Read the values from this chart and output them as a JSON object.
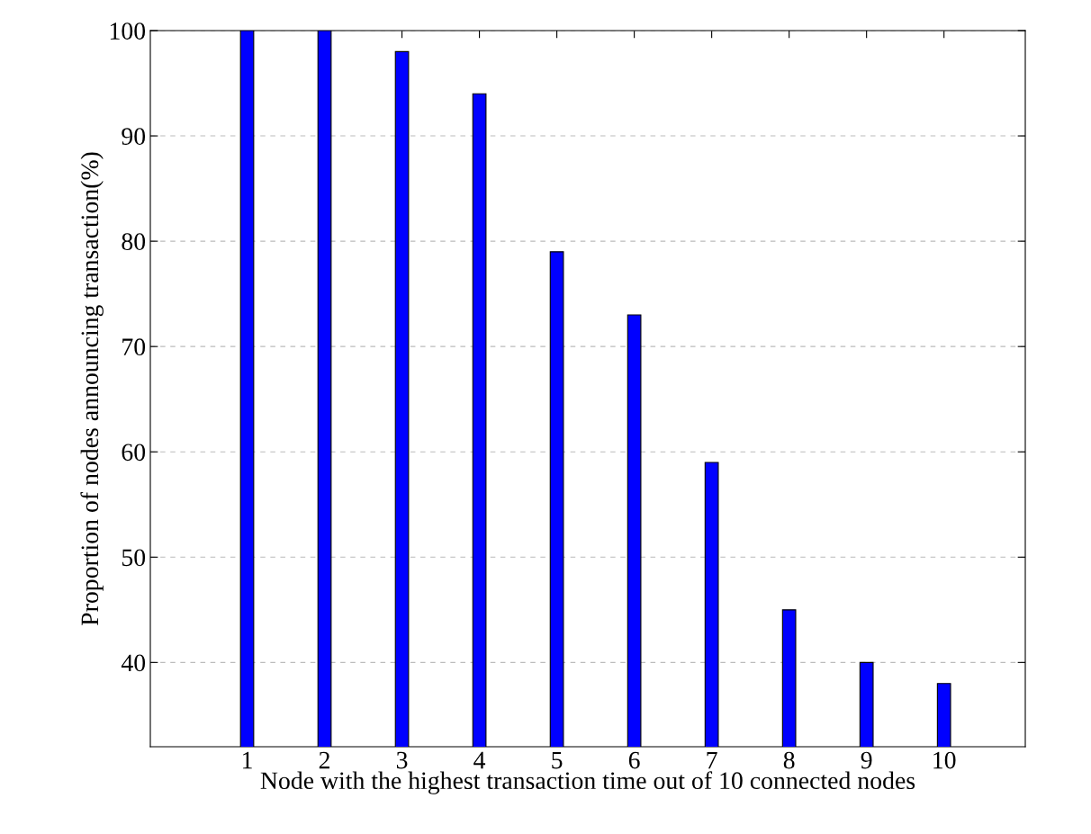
{
  "chart_data": {
    "type": "bar",
    "xlabel": "Node with the highest transaction time out of 10 connected nodes",
    "ylabel": "Proportion of nodes announcing transaction(%)",
    "x": [
      1,
      2,
      3,
      4,
      5,
      6,
      7,
      8,
      9,
      10
    ],
    "values": [
      100,
      100,
      98,
      94,
      79,
      73,
      59,
      45,
      40,
      38
    ],
    "color": "#0000ff",
    "xlim": [
      -0.25,
      11.05
    ],
    "xticks": [
      1,
      2,
      3,
      4,
      5,
      6,
      7,
      8,
      9,
      10
    ],
    "ylim": [
      32,
      100
    ],
    "yticks": [
      40,
      50,
      60,
      70,
      80,
      90,
      100
    ],
    "grid": "y"
  }
}
